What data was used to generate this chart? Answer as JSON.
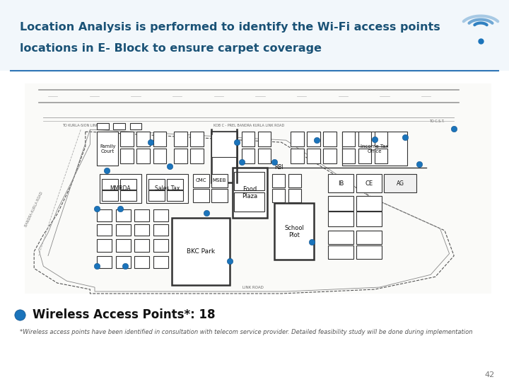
{
  "title_line1": "Location Analysis is performed to identify the Wi-Fi access points",
  "title_line2": "locations in E- Block to ensure carpet coverage",
  "title_color": "#1A5276",
  "title_fontsize": 11.5,
  "bg_color": "#FFFFFF",
  "divider_color": "#2E75B6",
  "bullet_color": "#1B74BB",
  "bullet_text": "Wireless Access Points*: 18",
  "bullet_fontsize": 12,
  "footnote": "*Wireless access points have been identified in consultation with telecom service provider. Detailed feasibility study will be done during implementation",
  "footnote_fontsize": 6.0,
  "page_number": "42"
}
